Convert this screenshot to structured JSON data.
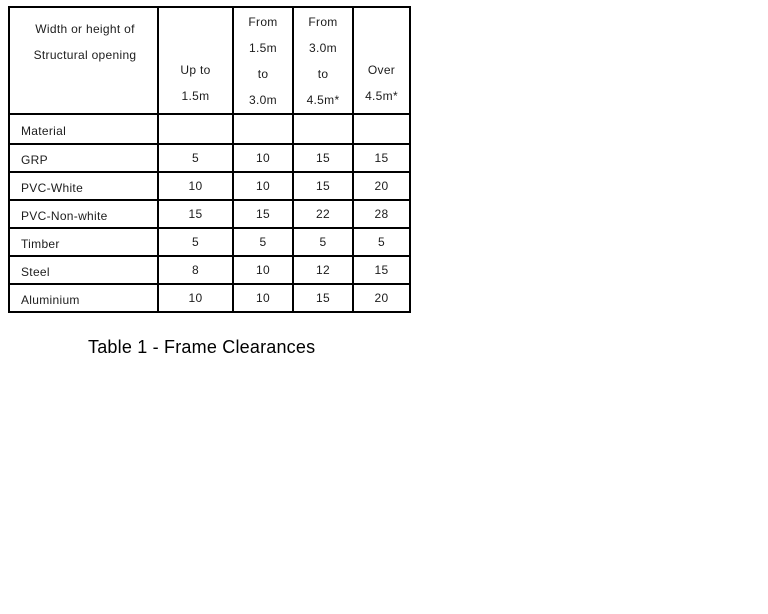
{
  "table": {
    "header": {
      "col1_lines": [
        "Width or height of",
        "Structural opening"
      ],
      "col2_lines": [
        "Up to",
        "1.5m"
      ],
      "col3_lines": [
        "From",
        "1.5m",
        "to",
        "3.0m"
      ],
      "col4_lines": [
        "From",
        "3.0m",
        "to",
        "4.5m*"
      ],
      "col5_lines": [
        "Over",
        "4.5m*"
      ]
    },
    "material_label": "Material",
    "rows": [
      {
        "material": "GRP",
        "values": [
          "5",
          "10",
          "15",
          "15"
        ]
      },
      {
        "material": "PVC-White",
        "values": [
          "10",
          "10",
          "15",
          "20"
        ]
      },
      {
        "material": "PVC-Non-white",
        "values": [
          "15",
          "15",
          "22",
          "28"
        ]
      },
      {
        "material": "Timber",
        "values": [
          "5",
          "5",
          "5",
          "5"
        ]
      },
      {
        "material": "Steel",
        "values": [
          "8",
          "10",
          "12",
          "15"
        ]
      },
      {
        "material": "Aluminium",
        "values": [
          "10",
          "10",
          "15",
          "20"
        ]
      }
    ]
  },
  "caption": "Table 1 - Frame Clearances",
  "colors": {
    "border": "#000000",
    "text": "#1c1c1c",
    "background": "#ffffff"
  }
}
